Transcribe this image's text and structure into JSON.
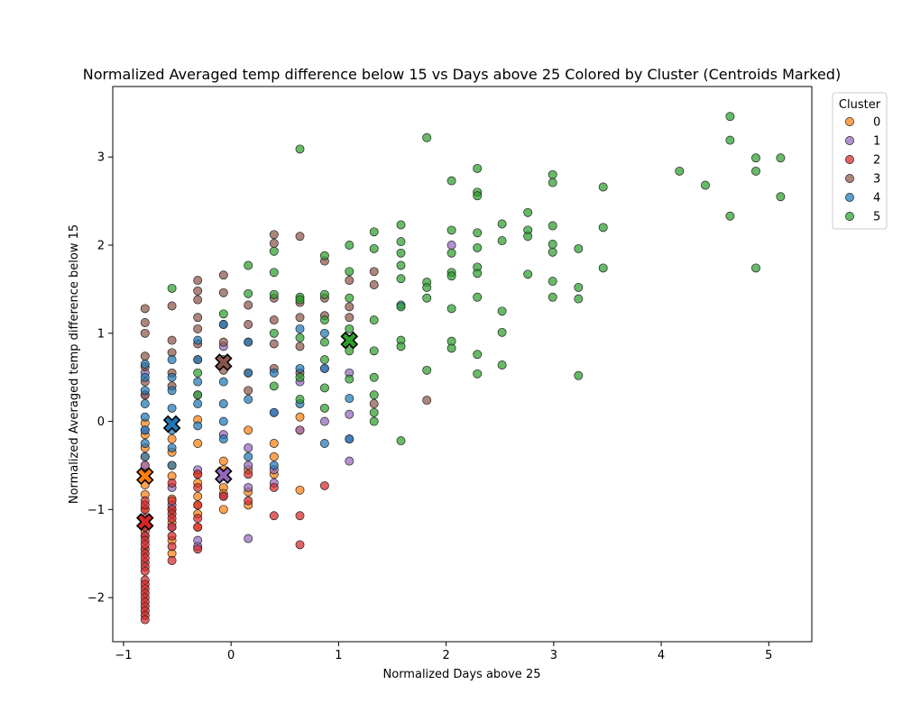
{
  "chart_data": {
    "type": "scatter",
    "title": "Normalized Averaged temp difference below 15 vs Days above 25 Colored by Cluster (Centroids Marked)",
    "xlabel": "Normalized Days above 25",
    "ylabel": "Normalized Averaged temp difference below 15",
    "xlim": [
      -1.1,
      5.4
    ],
    "ylim": [
      -2.5,
      3.8
    ],
    "xticks": [
      -1,
      0,
      1,
      2,
      3,
      4,
      5
    ],
    "yticks": [
      -2,
      -1,
      0,
      1,
      2,
      3
    ],
    "grid": false,
    "legend": {
      "title": "Cluster",
      "placement": "outside-top-right"
    },
    "series": [
      {
        "name": "0",
        "color": "#ff7f0e",
        "x": [
          -0.8,
          -0.8,
          -0.8,
          -0.8,
          -0.8,
          -0.8,
          -0.8,
          -0.8,
          -0.8,
          -0.8,
          -0.55,
          -0.55,
          -0.55,
          -0.55,
          -0.55,
          -0.55,
          -0.55,
          -0.55,
          -0.55,
          -0.31,
          -0.31,
          -0.31,
          -0.31,
          -0.31,
          -0.31,
          -0.31,
          -0.31,
          -0.07,
          -0.07,
          -0.07,
          -0.07,
          -0.07,
          -0.07,
          0.16,
          0.16,
          0.16,
          0.16,
          0.4,
          0.4,
          0.4,
          0.64,
          0.64,
          0.64
        ],
        "y": [
          -0.02,
          -0.15,
          -0.3,
          -0.4,
          -0.5,
          -0.6,
          -0.72,
          -0.83,
          -1.0,
          -1.25,
          -0.2,
          -0.35,
          -0.5,
          -0.62,
          -0.88,
          -1.0,
          -1.15,
          -1.35,
          -1.5,
          -0.6,
          -0.7,
          -0.85,
          -0.95,
          -1.05,
          -1.2,
          0.02,
          -0.25,
          -0.45,
          -0.55,
          -0.75,
          -0.82,
          -1.0,
          -0.6,
          -0.8,
          -0.95,
          -0.55,
          -0.1,
          -0.4,
          -0.6,
          -0.25,
          -0.78,
          0.05,
          -0.1
        ]
      },
      {
        "name": "1",
        "color": "#9467bd",
        "x": [
          -0.8,
          -0.8,
          -0.8,
          -0.8,
          -0.8,
          -0.8,
          -0.55,
          -0.55,
          -0.55,
          -0.31,
          -0.31,
          -0.31,
          -0.31,
          -0.07,
          -0.07,
          -0.07,
          0.16,
          0.16,
          0.16,
          0.16,
          0.4,
          0.4,
          0.4,
          0.64,
          0.64,
          0.87,
          0.87,
          1.1,
          1.1,
          1.1,
          1.1,
          2.05
        ],
        "y": [
          0.55,
          0.3,
          -0.1,
          -0.5,
          -1.2,
          -1.3,
          -0.75,
          -0.95,
          -1.2,
          0.3,
          -0.55,
          -1.35,
          -1.42,
          0.85,
          -0.15,
          -0.85,
          -0.75,
          -1.33,
          -0.5,
          -0.3,
          -0.7,
          -0.55,
          0.1,
          -0.1,
          0.45,
          0.0,
          0.6,
          0.08,
          -0.45,
          0.55,
          -0.2,
          2.0
        ]
      },
      {
        "name": "2",
        "color": "#d62728",
        "x": [
          -0.8,
          -0.8,
          -0.8,
          -0.8,
          -0.8,
          -0.8,
          -0.8,
          -0.8,
          -0.8,
          -0.8,
          -0.8,
          -0.8,
          -0.8,
          -0.8,
          -0.8,
          -0.8,
          -0.8,
          -0.8,
          -0.8,
          -0.8,
          -0.8,
          -0.8,
          -0.8,
          -0.8,
          -0.55,
          -0.55,
          -0.55,
          -0.55,
          -0.55,
          -0.55,
          -0.55,
          -0.55,
          -0.55,
          -0.31,
          -0.31,
          -0.31,
          -0.31,
          -0.31,
          -0.31,
          -0.07,
          -0.07,
          0.16,
          0.16,
          0.4,
          0.4,
          0.64,
          0.64,
          0.87
        ],
        "y": [
          -0.9,
          -1.0,
          -1.1,
          -1.2,
          -1.3,
          -1.35,
          -1.45,
          -1.5,
          -1.6,
          -1.65,
          -1.7,
          -1.8,
          -1.85,
          -1.9,
          -1.95,
          -2.0,
          -2.05,
          -2.1,
          -2.15,
          -2.2,
          -2.25,
          -0.95,
          -1.4,
          -1.55,
          -0.9,
          -1.0,
          -1.05,
          -1.1,
          -1.2,
          -1.3,
          -1.42,
          -1.58,
          -0.7,
          -0.75,
          -0.95,
          -1.1,
          -1.2,
          -1.45,
          -0.6,
          -0.85,
          -0.62,
          -0.6,
          -0.9,
          -0.75,
          -1.07,
          -1.07,
          -1.4,
          -0.73
        ]
      },
      {
        "name": "3",
        "color": "#8c564b",
        "x": [
          -0.8,
          -0.8,
          -0.8,
          -0.8,
          -0.8,
          -0.8,
          -0.8,
          -0.55,
          -0.55,
          -0.55,
          -0.55,
          -0.55,
          -0.31,
          -0.31,
          -0.31,
          -0.31,
          -0.31,
          -0.31,
          -0.31,
          -0.07,
          -0.07,
          -0.07,
          -0.07,
          -0.07,
          0.16,
          0.16,
          0.16,
          0.16,
          0.16,
          0.4,
          0.4,
          0.4,
          0.4,
          0.4,
          0.4,
          0.64,
          0.64,
          0.64,
          0.64,
          0.64,
          0.87,
          0.87,
          0.87,
          1.1,
          1.1,
          1.1,
          1.33,
          1.33,
          1.33,
          1.82
        ],
        "y": [
          1.28,
          1.12,
          1.0,
          0.74,
          0.62,
          0.45,
          0.3,
          1.31,
          0.92,
          0.78,
          0.55,
          0.4,
          1.6,
          1.48,
          1.38,
          1.18,
          1.05,
          0.88,
          0.7,
          1.66,
          1.46,
          1.1,
          0.9,
          0.58,
          1.32,
          1.1,
          0.9,
          0.55,
          0.35,
          2.12,
          2.02,
          1.4,
          1.15,
          0.88,
          0.6,
          2.1,
          1.35,
          1.18,
          0.85,
          0.55,
          1.82,
          1.4,
          1.2,
          1.6,
          1.3,
          1.18,
          1.7,
          1.55,
          0.2,
          0.24
        ]
      },
      {
        "name": "4",
        "color": "#1f77b4",
        "x": [
          -0.8,
          -0.8,
          -0.8,
          -0.8,
          -0.8,
          -0.8,
          -0.8,
          -0.8,
          -0.55,
          -0.55,
          -0.55,
          -0.55,
          -0.55,
          -0.55,
          -0.55,
          -0.31,
          -0.31,
          -0.31,
          -0.31,
          -0.31,
          -0.07,
          -0.07,
          -0.07,
          -0.07,
          -0.07,
          -0.07,
          0.16,
          0.16,
          0.16,
          0.16,
          0.4,
          0.4,
          0.4,
          0.64,
          0.64,
          0.64,
          0.87,
          0.87,
          0.87,
          1.1,
          1.1,
          1.58
        ],
        "y": [
          0.65,
          0.5,
          0.35,
          0.2,
          0.05,
          -0.1,
          -0.25,
          -0.4,
          0.7,
          0.5,
          0.35,
          0.15,
          -0.1,
          -0.3,
          -0.5,
          0.92,
          0.7,
          0.45,
          0.2,
          -0.05,
          1.1,
          0.7,
          0.45,
          0.2,
          0.0,
          -0.2,
          0.9,
          0.55,
          0.25,
          -0.4,
          0.55,
          0.1,
          -0.5,
          1.05,
          0.6,
          0.2,
          1.0,
          0.6,
          -0.25,
          0.26,
          -0.2,
          1.32
        ]
      },
      {
        "name": "5",
        "color": "#2ca02c",
        "x": [
          -0.55,
          -0.31,
          -0.31,
          -0.07,
          0.16,
          0.16,
          0.4,
          0.4,
          0.4,
          0.4,
          0.4,
          0.64,
          0.64,
          0.64,
          0.64,
          0.64,
          0.64,
          0.87,
          0.87,
          0.87,
          0.87,
          0.87,
          0.87,
          0.87,
          1.1,
          1.1,
          1.1,
          1.1,
          1.1,
          1.1,
          1.33,
          1.33,
          1.33,
          1.33,
          1.33,
          1.33,
          1.33,
          1.33,
          1.58,
          1.58,
          1.58,
          1.58,
          1.58,
          1.58,
          1.58,
          1.58,
          1.58,
          1.82,
          1.82,
          1.82,
          1.82,
          1.82,
          2.05,
          2.05,
          2.05,
          2.05,
          2.05,
          2.05,
          2.05,
          2.05,
          2.29,
          2.29,
          2.29,
          2.29,
          2.29,
          2.29,
          2.29,
          2.29,
          2.29,
          2.29,
          2.52,
          2.52,
          2.52,
          2.52,
          2.52,
          2.76,
          2.76,
          2.76,
          2.76,
          2.99,
          2.99,
          2.99,
          2.99,
          2.99,
          2.99,
          2.99,
          3.23,
          3.23,
          3.23,
          3.23,
          3.46,
          3.46,
          3.46,
          4.17,
          4.41,
          4.64,
          4.64,
          4.64,
          4.88,
          4.88,
          4.88,
          5.11,
          5.11
        ],
        "y": [
          1.51,
          0.55,
          0.3,
          1.22,
          1.77,
          1.45,
          1.93,
          1.69,
          1.44,
          1.0,
          0.4,
          3.09,
          1.41,
          1.38,
          0.95,
          0.5,
          0.25,
          1.88,
          1.44,
          1.15,
          0.9,
          0.7,
          0.38,
          0.15,
          2.0,
          1.7,
          1.4,
          1.05,
          0.8,
          0.48,
          2.15,
          1.96,
          1.15,
          0.8,
          0.5,
          0.3,
          0.1,
          0.0,
          2.23,
          2.04,
          1.91,
          1.77,
          1.62,
          1.3,
          0.92,
          0.85,
          -0.22,
          3.22,
          1.58,
          1.52,
          1.4,
          0.58,
          2.73,
          2.17,
          1.91,
          1.69,
          1.28,
          0.91,
          0.83,
          1.65,
          2.87,
          2.6,
          2.56,
          2.14,
          1.97,
          1.75,
          1.68,
          1.41,
          0.76,
          0.54,
          2.24,
          2.05,
          1.25,
          1.01,
          0.64,
          2.37,
          2.17,
          2.1,
          1.67,
          2.8,
          2.71,
          2.22,
          2.01,
          1.92,
          1.59,
          1.41,
          1.96,
          1.52,
          1.39,
          0.52,
          2.66,
          2.2,
          1.74,
          2.84,
          2.68,
          3.46,
          3.19,
          2.33,
          2.99,
          2.84,
          1.74,
          2.99,
          2.55
        ]
      }
    ],
    "centroids": [
      {
        "cluster": "0",
        "x": -0.8,
        "y": -0.62
      },
      {
        "cluster": "1",
        "x": -0.07,
        "y": -0.61
      },
      {
        "cluster": "2",
        "x": -0.8,
        "y": -1.14
      },
      {
        "cluster": "3",
        "x": -0.07,
        "y": 0.67
      },
      {
        "cluster": "4",
        "x": -0.55,
        "y": -0.03
      },
      {
        "cluster": "5",
        "x": 1.1,
        "y": 0.92
      }
    ]
  }
}
